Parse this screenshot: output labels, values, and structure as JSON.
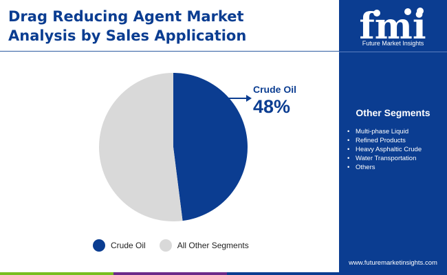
{
  "title_line1": "Drag Reducing Agent Market",
  "title_line2": "Analysis by Sales Application",
  "brand": {
    "logo_text": "fmi",
    "caption": "Future Market Insights",
    "url": "www.futuremarketinsights.com"
  },
  "other_segments": {
    "title": "Other Segments",
    "items": [
      "Multi-phase Liquid",
      "Refined Products",
      "Heavy Asphaltic Crude",
      "Water Transportation",
      "Others"
    ]
  },
  "callout": {
    "label": "Crude Oil",
    "value": "48%"
  },
  "colors": {
    "primary": "#0b3d91",
    "secondary": "#d9d9d9",
    "bar_green": "#78be20",
    "bar_purple": "#6c2b8a",
    "bar_blue": "#0b3d91"
  },
  "chart_data": {
    "type": "pie",
    "slices": [
      {
        "label": "Crude Oil",
        "value": 48,
        "color": "#0b3d91"
      },
      {
        "label": "All Other Segments",
        "value": 52,
        "color": "#d9d9d9"
      }
    ],
    "legend": [
      "Crude Oil",
      "All Other Segments"
    ],
    "legend_position": "bottom"
  }
}
